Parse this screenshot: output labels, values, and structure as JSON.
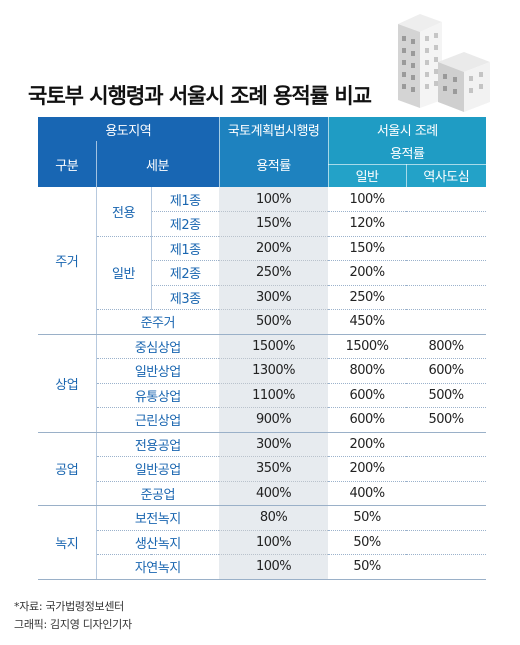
{
  "title": "국토부 시행령과 서울시 조례 용적률 비교",
  "header": {
    "use_area": "용도지역",
    "law": "국토계획법시행령",
    "seoul": "서울시 조례",
    "division": "구분",
    "subdivision": "세분",
    "far": "용적률",
    "seoul_far": "용적률",
    "general": "일반",
    "historic": "역사도심"
  },
  "groups": {
    "residential": "주거",
    "commercial": "상업",
    "industrial": "공업",
    "green": "녹지"
  },
  "subgroups": {
    "exclusive": "전용",
    "general": "일반"
  },
  "rows": [
    {
      "name": "제1종",
      "law": "100%",
      "seoul": "100%",
      "hist": ""
    },
    {
      "name": "제2종",
      "law": "150%",
      "seoul": "120%",
      "hist": ""
    },
    {
      "name": "제1종",
      "law": "200%",
      "seoul": "150%",
      "hist": ""
    },
    {
      "name": "제2종",
      "law": "250%",
      "seoul": "200%",
      "hist": ""
    },
    {
      "name": "제3종",
      "law": "300%",
      "seoul": "250%",
      "hist": ""
    },
    {
      "name": "준주거",
      "law": "500%",
      "seoul": "450%",
      "hist": ""
    },
    {
      "name": "중심상업",
      "law": "1500%",
      "seoul": "1500%",
      "hist": "800%"
    },
    {
      "name": "일반상업",
      "law": "1300%",
      "seoul": "800%",
      "hist": "600%"
    },
    {
      "name": "유통상업",
      "law": "1100%",
      "seoul": "600%",
      "hist": "500%"
    },
    {
      "name": "근린상업",
      "law": "900%",
      "seoul": "600%",
      "hist": "500%"
    },
    {
      "name": "전용공업",
      "law": "300%",
      "seoul": "200%",
      "hist": ""
    },
    {
      "name": "일반공업",
      "law": "350%",
      "seoul": "200%",
      "hist": ""
    },
    {
      "name": "준공업",
      "law": "400%",
      "seoul": "400%",
      "hist": ""
    },
    {
      "name": "보전녹지",
      "law": "80%",
      "seoul": "50%",
      "hist": ""
    },
    {
      "name": "생산녹지",
      "law": "100%",
      "seoul": "50%",
      "hist": ""
    },
    {
      "name": "자연녹지",
      "law": "100%",
      "seoul": "50%",
      "hist": ""
    }
  ],
  "footer": {
    "source": "*자료: 국가법령정보센터",
    "credit": "그래픽: 김지영 디자인기자"
  },
  "colors": {
    "header_blue": "#1a68b4",
    "header_teal": "#1f9cc4",
    "label_blue": "#1a66b0",
    "law_column_bg": "#e7ebef"
  }
}
